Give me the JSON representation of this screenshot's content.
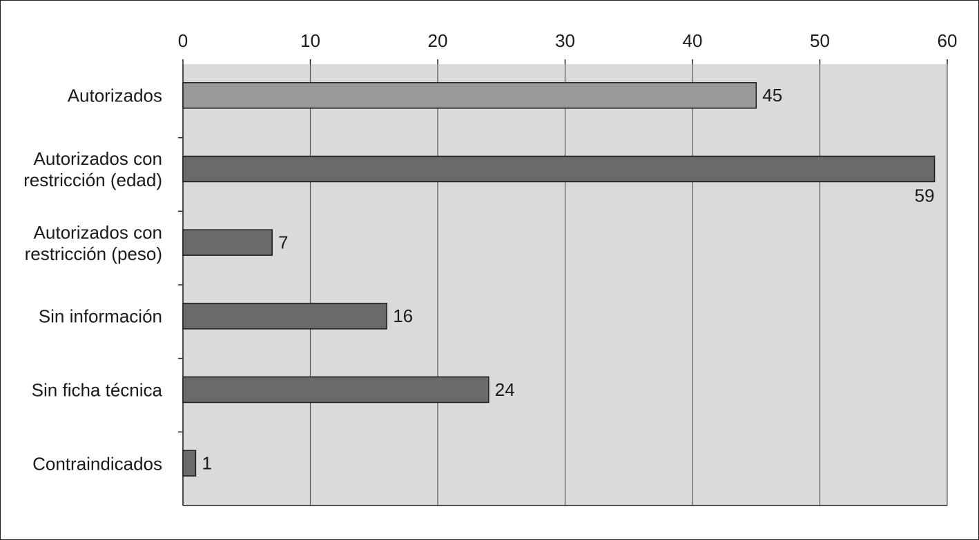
{
  "chart_data": {
    "type": "hbar",
    "categories": [
      "Autorizados",
      "Autorizados con\nrestricción (edad)",
      "Autorizados con\nrestricción (peso)",
      "Sin información",
      "Sin ficha técnica",
      "Contraindicados"
    ],
    "values": [
      45,
      59,
      7,
      16,
      24,
      1
    ],
    "colors": [
      "#9a9a9a",
      "#6a6a6a",
      "#6a6a6a",
      "#6a6a6a",
      "#6a6a6a",
      "#6a6a6a"
    ],
    "xlim": [
      0,
      60
    ],
    "xticks": [
      0,
      10,
      20,
      30,
      40,
      50,
      60
    ],
    "grid": true
  }
}
